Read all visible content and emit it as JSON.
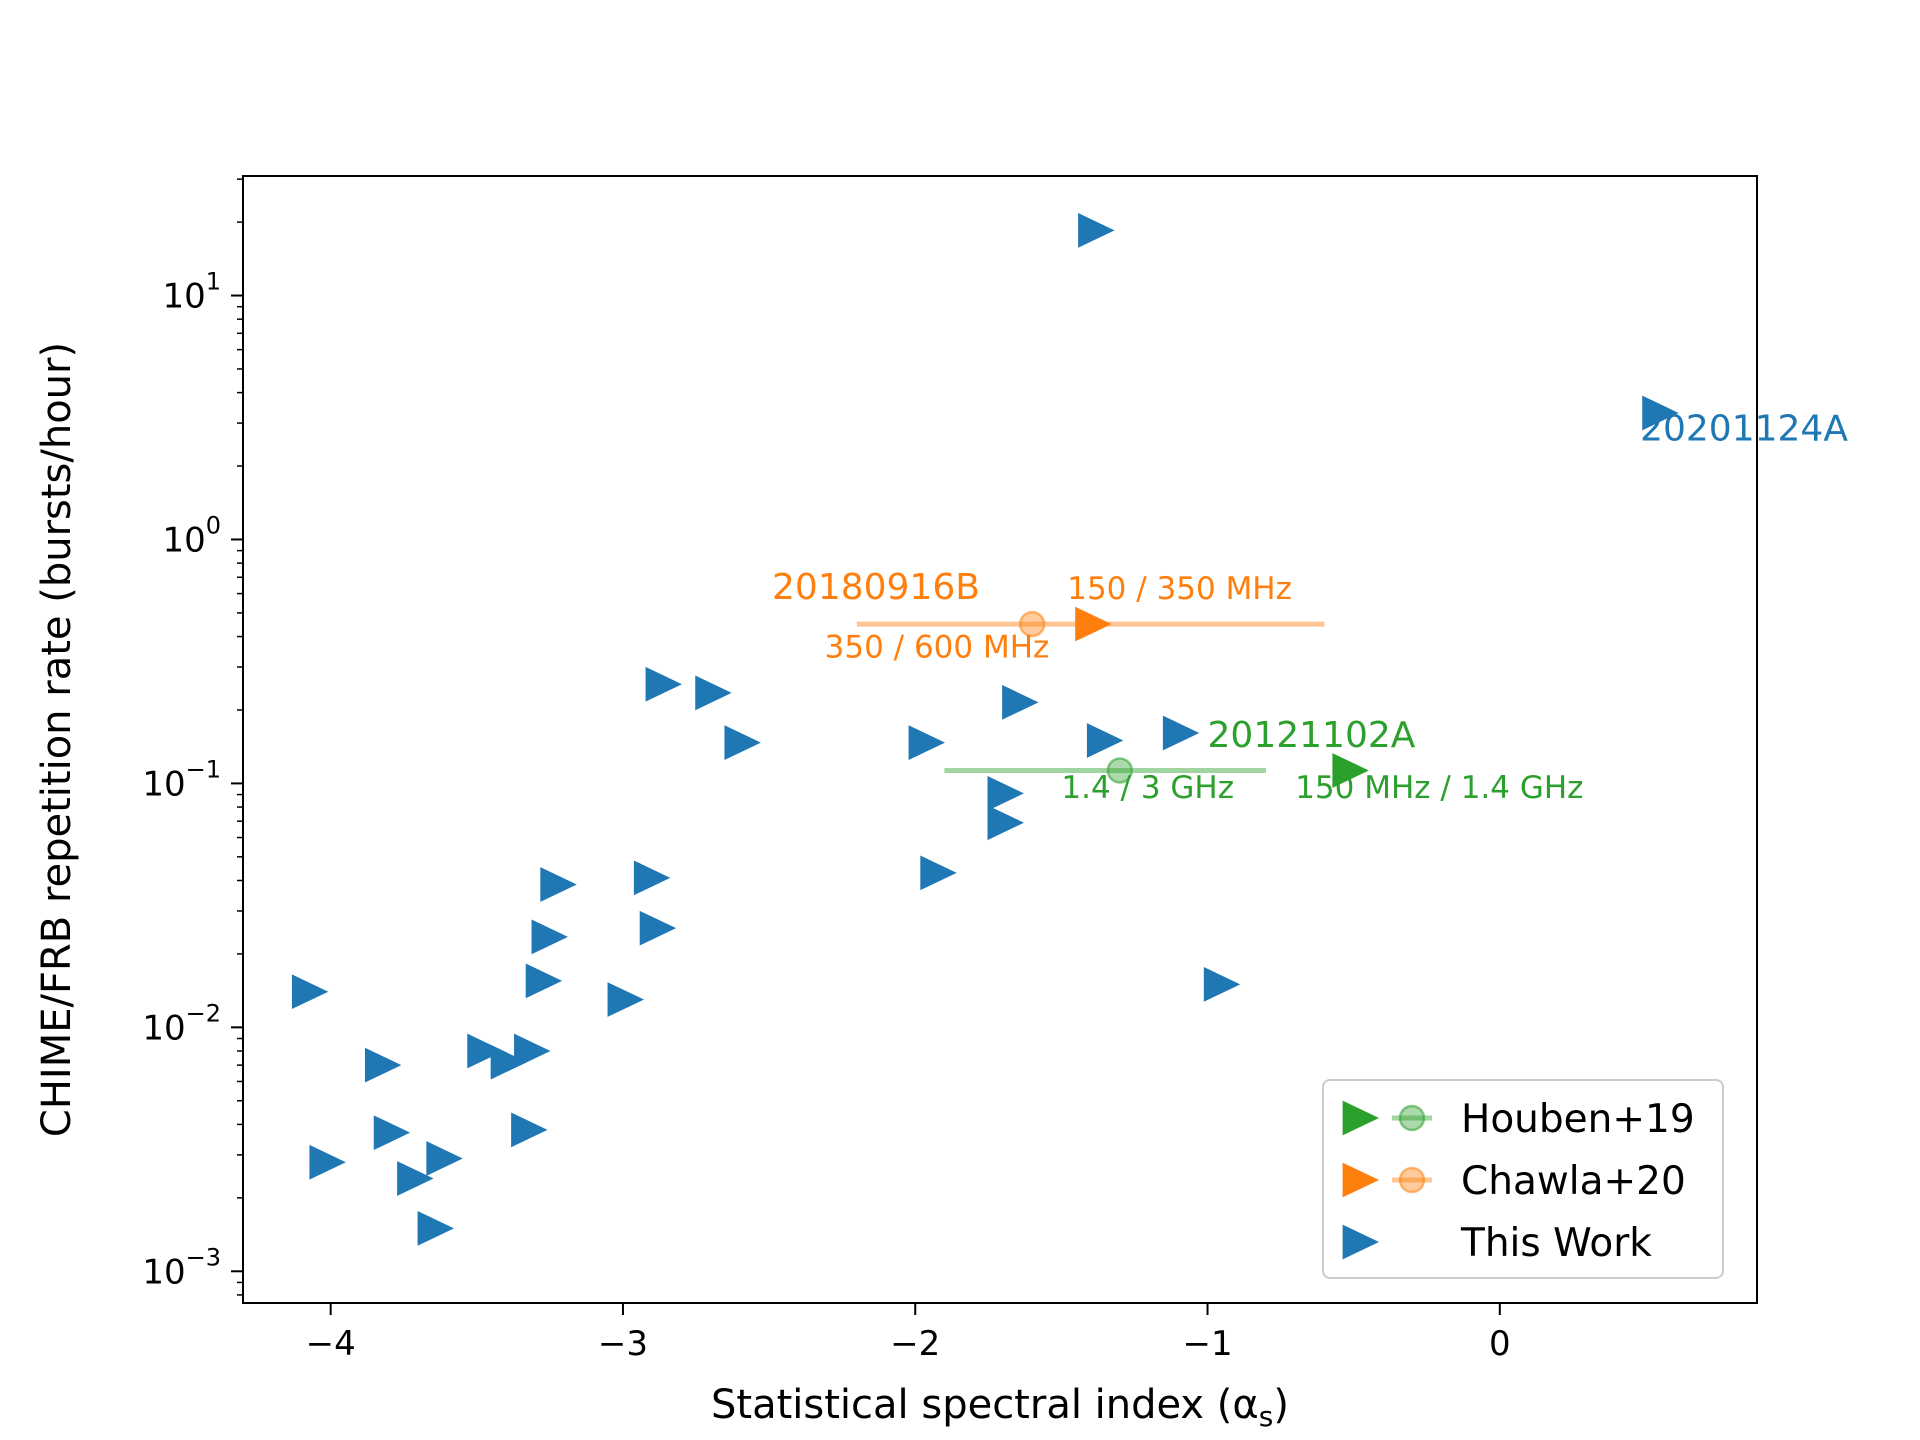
{
  "chart_data": {
    "type": "scatter",
    "xlabel": "Statistical spectral index (α",
    "xlabel_sub": "s",
    "xlabel_close": ")",
    "ylabel": "CHIME/FRB repetition rate (bursts/hour)",
    "xlim": [
      -4.3,
      0.88
    ],
    "ylim_log10": [
      -3.13,
      1.49
    ],
    "y_scale": "log",
    "grid": false,
    "legend_position": "lower-right",
    "x_ticks": [
      {
        "value": -4,
        "label": "−4"
      },
      {
        "value": -3,
        "label": "−3"
      },
      {
        "value": -2,
        "label": "−2"
      },
      {
        "value": -1,
        "label": "−1"
      },
      {
        "value": 0,
        "label": "0"
      }
    ],
    "y_ticks": [
      {
        "exp": -3,
        "base": "10",
        "sup": "−3"
      },
      {
        "exp": -2,
        "base": "10",
        "sup": "−2"
      },
      {
        "exp": -1,
        "base": "10",
        "sup": "−1"
      },
      {
        "exp": 0,
        "base": "10",
        "sup": "0"
      },
      {
        "exp": 1,
        "base": "10",
        "sup": "1"
      }
    ],
    "colors": {
      "this_work": "#1f77b4",
      "chawla": "#ff7f0e",
      "houben": "#2ca02c"
    },
    "series": [
      {
        "name": "This Work",
        "marker": "triangle-right",
        "points": [
          [
            -4.08,
            0.014
          ],
          [
            -4.02,
            0.0028
          ],
          [
            -3.83,
            0.007
          ],
          [
            -3.8,
            0.0037
          ],
          [
            -3.72,
            0.0024
          ],
          [
            -3.65,
            0.0015
          ],
          [
            -3.62,
            0.0029
          ],
          [
            -3.48,
            0.008
          ],
          [
            -3.4,
            0.0072
          ],
          [
            -3.32,
            0.008
          ],
          [
            -3.33,
            0.0038
          ],
          [
            -3.28,
            0.0155
          ],
          [
            -3.26,
            0.0235
          ],
          [
            -3.23,
            0.0385
          ],
          [
            -3.0,
            0.013
          ],
          [
            -2.91,
            0.041
          ],
          [
            -2.89,
            0.0255
          ],
          [
            -2.87,
            0.255
          ],
          [
            -2.7,
            0.235
          ],
          [
            -2.6,
            0.147
          ],
          [
            -1.97,
            0.147
          ],
          [
            -1.93,
            0.043
          ],
          [
            -1.7,
            0.091
          ],
          [
            -1.7,
            0.069
          ],
          [
            -1.65,
            0.215
          ],
          [
            -1.36,
            0.15
          ],
          [
            -1.39,
            18.5
          ],
          [
            -1.1,
            0.161
          ],
          [
            -0.96,
            0.015
          ],
          [
            0.54,
            3.3
          ]
        ]
      },
      {
        "name": "Chawla+20",
        "marker": "triangle-right",
        "points": [
          [
            -1.4,
            0.45
          ]
        ],
        "circle": [
          -1.6,
          0.45
        ],
        "errorbar_x": [
          -2.2,
          -0.6
        ]
      },
      {
        "name": "Houben+19",
        "marker": "triangle-right",
        "points": [
          [
            -0.52,
            0.113
          ]
        ],
        "circle": [
          -1.3,
          0.113
        ],
        "errorbar_x": [
          -1.9,
          -0.8
        ]
      }
    ],
    "annotations": [
      {
        "id": "frb-20201124a",
        "text": "20201124A",
        "x": 0.48,
        "y": 2.55,
        "color": "this_work",
        "size": "large"
      },
      {
        "id": "frb-20180916b",
        "text": "20180916B",
        "x": -2.49,
        "y": 0.57,
        "color": "chawla",
        "size": "large"
      },
      {
        "id": "chawla-band-low",
        "text": "350 / 600 MHz",
        "x": -2.31,
        "y": 0.328,
        "color": "chawla",
        "size": "small"
      },
      {
        "id": "chawla-band-high",
        "text": "150 / 350 MHz",
        "x": -1.48,
        "y": 0.57,
        "color": "chawla",
        "size": "small"
      },
      {
        "id": "frb-20121102a",
        "text": "20121102A",
        "x": -1.0,
        "y": 0.141,
        "color": "houben",
        "size": "large"
      },
      {
        "id": "houben-band-low",
        "text": "1.4 / 3 GHz",
        "x": -1.5,
        "y": 0.087,
        "color": "houben",
        "size": "small"
      },
      {
        "id": "houben-band-high",
        "text": "150 MHz / 1.4 GHz",
        "x": -0.7,
        "y": 0.087,
        "color": "houben",
        "size": "small"
      }
    ],
    "legend": [
      {
        "id": "houben",
        "label": "Houben+19",
        "color": "houben",
        "errorbar": true
      },
      {
        "id": "chawla",
        "label": "Chawla+20",
        "color": "chawla",
        "errorbar": true
      },
      {
        "id": "this-work",
        "label": "This Work",
        "color": "this_work",
        "errorbar": false
      }
    ]
  }
}
